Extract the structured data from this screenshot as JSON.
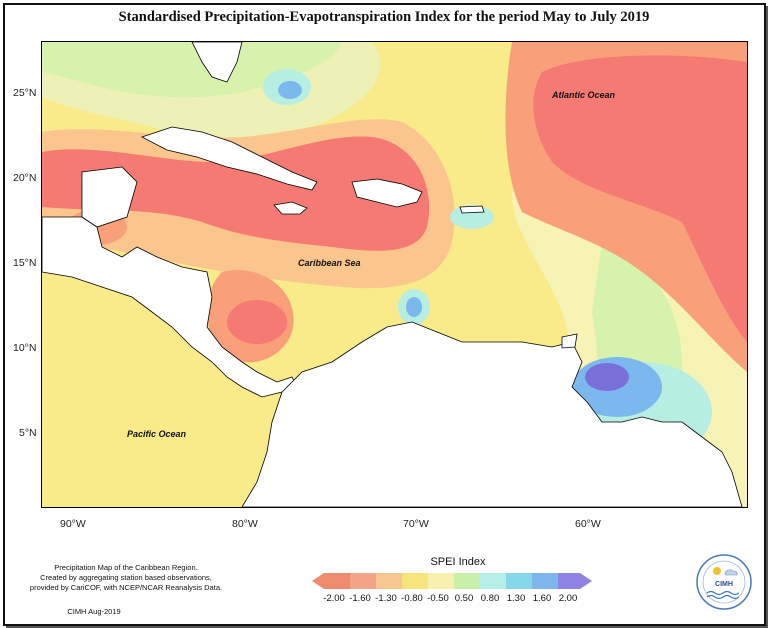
{
  "title": "Standardised Precipitation-Evapotranspiration Index for the period May to July 2019",
  "map_labels": {
    "atlantic": "Atlantic Ocean",
    "caribbean": "Caribbean Sea",
    "pacific": "Pacific Ocean"
  },
  "lat_ticks": [
    "25°N",
    "20°N",
    "15°N",
    "10°N",
    "5°N"
  ],
  "lon_ticks": [
    "90°W",
    "80°W",
    "70°W",
    "60°W"
  ],
  "notes": {
    "line1": "Precipitation Map of the Caribbean Region.",
    "line2": "Created by aggregating station based observations,",
    "line3": "provided by CariCOF, with NCEP/NCAR Reanalysis Data.",
    "credit": "CIMH Aug-2019"
  },
  "legend": {
    "title": "SPEI Index",
    "labels": [
      "-2.00",
      "-1.60",
      "-1.30",
      "-0.80",
      "-0.50",
      "0.50",
      "0.80",
      "1.30",
      "1.60",
      "2.00"
    ],
    "colors": [
      "#f08a6e",
      "#f4a585",
      "#f8c690",
      "#f6e47c",
      "#f7f0ae",
      "#c9f0a8",
      "#b6eee8",
      "#86d7ea",
      "#7fb7ec",
      "#8f83e6"
    ]
  },
  "logo": {
    "text": "CIMH"
  },
  "colors": {
    "very_dry": "#f57a74",
    "dry": "#f9a07a",
    "moderately_dry": "#fbc68d",
    "normal_dry": "#f9ea8a",
    "near_normal": "#f6f3b5",
    "moderately_wet": "#d6f2ad",
    "wet": "#b7eee2",
    "very_wet": "#7bb8ee",
    "extremely_wet": "#7a6fd8",
    "land": "#ffffff"
  }
}
